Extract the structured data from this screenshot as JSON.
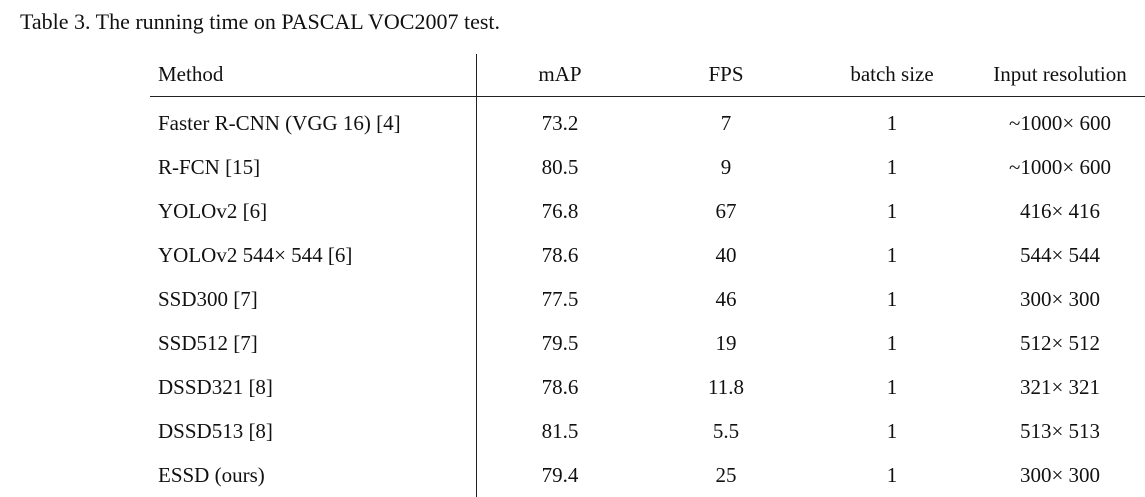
{
  "caption": "Table 3. The running time on PASCAL VOC2007 test.",
  "table": {
    "headers": [
      "Method",
      "mAP",
      "FPS",
      "batch size",
      "Input resolution"
    ],
    "rows": [
      [
        "Faster R-CNN (VGG 16) [4]",
        "73.2",
        "7",
        "1",
        "~1000× 600"
      ],
      [
        "R-FCN [15]",
        "80.5",
        "9",
        "1",
        "~1000× 600"
      ],
      [
        "YOLOv2 [6]",
        "76.8",
        "67",
        "1",
        "416× 416"
      ],
      [
        "YOLOv2 544× 544 [6]",
        "78.6",
        "40",
        "1",
        "544× 544"
      ],
      [
        "SSD300 [7]",
        "77.5",
        "46",
        "1",
        "300× 300"
      ],
      [
        "SSD512 [7]",
        "79.5",
        "19",
        "1",
        "512× 512"
      ],
      [
        "DSSD321 [8]",
        "78.6",
        "11.8",
        "1",
        "321× 321"
      ],
      [
        "DSSD513 [8]",
        "81.5",
        "5.5",
        "1",
        "513× 513"
      ],
      [
        "ESSD (ours)",
        "79.4",
        "25",
        "1",
        "300× 300"
      ]
    ]
  }
}
